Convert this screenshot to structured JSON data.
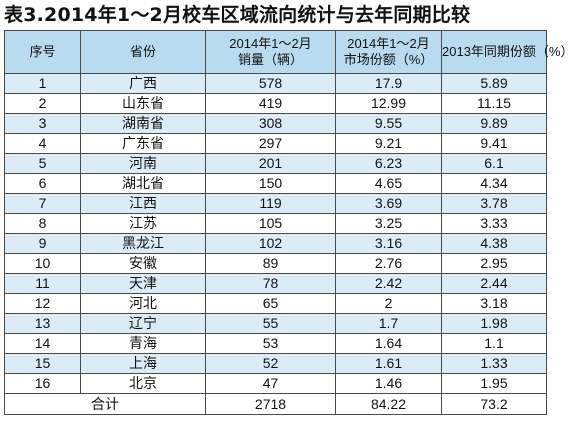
{
  "title": "表3.2014年1～2月校车区域流向统计与去年同期比较",
  "headers": [
    {
      "l1": "序号",
      "l2": ""
    },
    {
      "l1": "省份",
      "l2": ""
    },
    {
      "l1": "2014年1～2月",
      "l2": "销量（辆）"
    },
    {
      "l1": "2014年1～2月",
      "l2": "市场份额（%）"
    },
    {
      "l1": "2013年同期份额（%）",
      "l2": ""
    }
  ],
  "rows": [
    [
      "1",
      "广西",
      "578",
      "17.9",
      "5.89"
    ],
    [
      "2",
      "山东省",
      "419",
      "12.99",
      "11.15"
    ],
    [
      "3",
      "湖南省",
      "308",
      "9.55",
      "9.89"
    ],
    [
      "4",
      "广东省",
      "297",
      "9.21",
      "9.41"
    ],
    [
      "5",
      "河南",
      "201",
      "6.23",
      "6.1"
    ],
    [
      "6",
      "湖北省",
      "150",
      "4.65",
      "4.34"
    ],
    [
      "7",
      "江西",
      "119",
      "3.69",
      "3.78"
    ],
    [
      "8",
      "江苏",
      "105",
      "3.25",
      "3.33"
    ],
    [
      "9",
      "黑龙江",
      "102",
      "3.16",
      "4.38"
    ],
    [
      "10",
      "安徽",
      "89",
      "2.76",
      "2.95"
    ],
    [
      "11",
      "天津",
      "78",
      "2.42",
      "2.44"
    ],
    [
      "12",
      "河北",
      "65",
      "2",
      "3.18"
    ],
    [
      "13",
      "辽宁",
      "55",
      "1.7",
      "1.98"
    ],
    [
      "14",
      "青海",
      "53",
      "1.64",
      "1.1"
    ],
    [
      "15",
      "上海",
      "52",
      "1.61",
      "1.33"
    ],
    [
      "16",
      "北京",
      "47",
      "1.46",
      "1.95"
    ]
  ],
  "total": {
    "label": "合计",
    "sales": "2718",
    "share": "84.22",
    "prev_share": "73.2"
  },
  "colors": {
    "header_bg": "#b9dbf0",
    "stripe_bg": "#dcecf7",
    "border": "#4a4a4a"
  }
}
